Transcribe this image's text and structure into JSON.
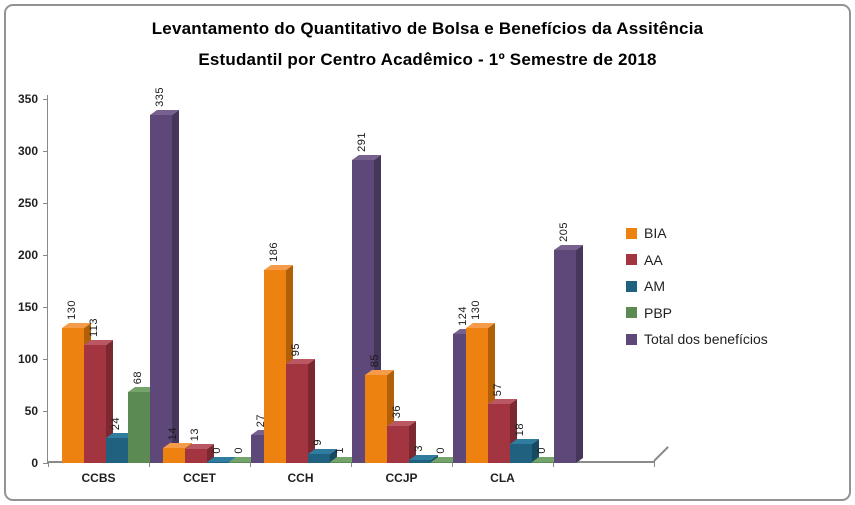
{
  "title": {
    "line1": "Levantamento do Quantitativo de Bolsa e Benefícios da Assitência",
    "line2": "Estudantil  por Centro Acadêmico - 1º Semestre de 2018"
  },
  "chart_data": {
    "type": "bar",
    "style": "3d-clustered-column",
    "title": "Levantamento do Quantitativo de Bolsa e Benefícios da Assitência Estudantil por Centro Acadêmico - 1º Semestre de 2018",
    "categories": [
      "CCBS",
      "CCET",
      "CCH",
      "CCJP",
      "CLA"
    ],
    "series": [
      {
        "name": "BIA",
        "color": "#EE8211",
        "side_color": "#B26008",
        "top_color": "#F49C49",
        "values": [
          130,
          14,
          186,
          85,
          130
        ]
      },
      {
        "name": "AA",
        "color": "#A23540",
        "side_color": "#7C2831",
        "top_color": "#B95762",
        "values": [
          113,
          13,
          95,
          36,
          57
        ]
      },
      {
        "name": "AM",
        "color": "#1F617F",
        "side_color": "#174A61",
        "top_color": "#2F7C9E",
        "values": [
          24,
          0,
          9,
          3,
          18
        ]
      },
      {
        "name": "PBP",
        "color": "#5B8B52",
        "side_color": "#45693E",
        "top_color": "#74A46B",
        "values": [
          68,
          0,
          1,
          0,
          0
        ]
      },
      {
        "name": "Total dos benefícios",
        "color": "#5E4879",
        "side_color": "#463659",
        "top_color": "#77628F",
        "values": [
          335,
          27,
          291,
          124,
          205
        ]
      }
    ],
    "y_ticks": [
      0,
      50,
      100,
      150,
      200,
      250,
      300,
      350
    ],
    "ylim": [
      0,
      350
    ],
    "data_labels": "rotated-vertical",
    "legend_position": "right",
    "grid": false,
    "axis_color": "#8A8A8A",
    "text_color": "#1F1F1F"
  }
}
